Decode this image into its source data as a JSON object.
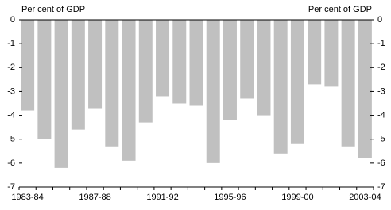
{
  "chart_data": {
    "type": "bar",
    "ylabel": "Per cent of GDP",
    "y2label": "Per cent of GDP",
    "categories": [
      "1983-84",
      null,
      null,
      null,
      "1987-88",
      null,
      null,
      null,
      "1991-92",
      null,
      null,
      null,
      "1995-96",
      null,
      null,
      null,
      "1999-00",
      null,
      null,
      null,
      "2003-04"
    ],
    "values": [
      -3.8,
      -5.0,
      -6.2,
      -4.6,
      -3.7,
      -5.3,
      -5.9,
      -4.3,
      -3.2,
      -3.5,
      -3.6,
      -6.0,
      -4.2,
      -3.3,
      -4.0,
      -5.6,
      -5.2,
      -2.7,
      -2.8,
      -5.3,
      -5.8
    ],
    "color": "#c0c0c0",
    "ylim": [
      -7,
      0
    ],
    "yticks": [
      0,
      -1,
      -2,
      -3,
      -4,
      -5,
      -6,
      -7
    ],
    "y2lim": [
      -7,
      0
    ],
    "y2ticks": [
      0,
      -1,
      -2,
      -3,
      -4,
      -5,
      -6,
      -7
    ],
    "grid": false
  }
}
